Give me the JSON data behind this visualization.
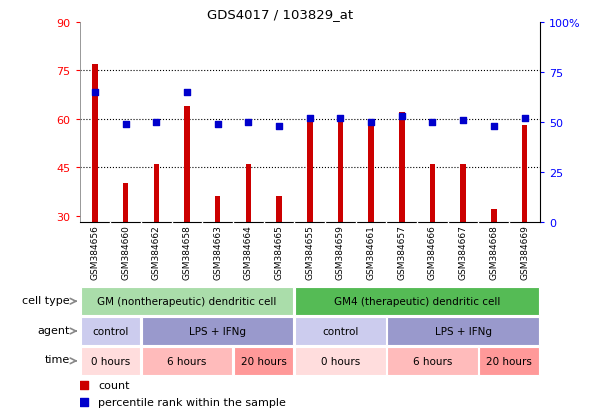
{
  "title": "GDS4017 / 103829_at",
  "samples": [
    "GSM384656",
    "GSM384660",
    "GSM384662",
    "GSM384658",
    "GSM384663",
    "GSM384664",
    "GSM384665",
    "GSM384655",
    "GSM384659",
    "GSM384661",
    "GSM384657",
    "GSM384666",
    "GSM384667",
    "GSM384668",
    "GSM384669"
  ],
  "count_values": [
    77,
    40,
    46,
    64,
    36,
    46,
    36,
    59,
    61,
    58,
    62,
    46,
    46,
    32,
    58
  ],
  "percentile_values": [
    65,
    49,
    50,
    65,
    49,
    50,
    48,
    52,
    52,
    50,
    53,
    50,
    51,
    48,
    52
  ],
  "ylim_left": [
    28,
    90
  ],
  "ylim_right": [
    0,
    100
  ],
  "yticks_left": [
    30,
    45,
    60,
    75,
    90
  ],
  "yticks_right": [
    0,
    25,
    50,
    75,
    100
  ],
  "ytick_labels_right": [
    "0",
    "25",
    "50",
    "75",
    "100%"
  ],
  "bar_color": "#cc0000",
  "dot_color": "#0000cc",
  "cell_type_row": {
    "label": "cell type",
    "groups": [
      {
        "text": "GM (nontherapeutic) dendritic cell",
        "span": [
          0,
          7
        ],
        "color": "#aaddaa"
      },
      {
        "text": "GM4 (therapeutic) dendritic cell",
        "span": [
          7,
          15
        ],
        "color": "#55bb55"
      }
    ]
  },
  "agent_row": {
    "label": "agent",
    "groups": [
      {
        "text": "control",
        "span": [
          0,
          2
        ],
        "color": "#ccccee"
      },
      {
        "text": "LPS + IFNg",
        "span": [
          2,
          7
        ],
        "color": "#9999cc"
      },
      {
        "text": "control",
        "span": [
          7,
          10
        ],
        "color": "#ccccee"
      },
      {
        "text": "LPS + IFNg",
        "span": [
          10,
          15
        ],
        "color": "#9999cc"
      }
    ]
  },
  "time_row": {
    "label": "time",
    "groups": [
      {
        "text": "0 hours",
        "span": [
          0,
          2
        ],
        "color": "#ffdddd"
      },
      {
        "text": "6 hours",
        "span": [
          2,
          5
        ],
        "color": "#ffbbbb"
      },
      {
        "text": "20 hours",
        "span": [
          5,
          7
        ],
        "color": "#ff9999"
      },
      {
        "text": "0 hours",
        "span": [
          7,
          10
        ],
        "color": "#ffdddd"
      },
      {
        "text": "6 hours",
        "span": [
          10,
          13
        ],
        "color": "#ffbbbb"
      },
      {
        "text": "20 hours",
        "span": [
          13,
          15
        ],
        "color": "#ff9999"
      }
    ]
  },
  "legend_items": [
    {
      "label": "count",
      "color": "#cc0000"
    },
    {
      "label": "percentile rank within the sample",
      "color": "#0000cc"
    }
  ],
  "bg_color": "#ffffff",
  "tick_area_bg": "#cccccc"
}
